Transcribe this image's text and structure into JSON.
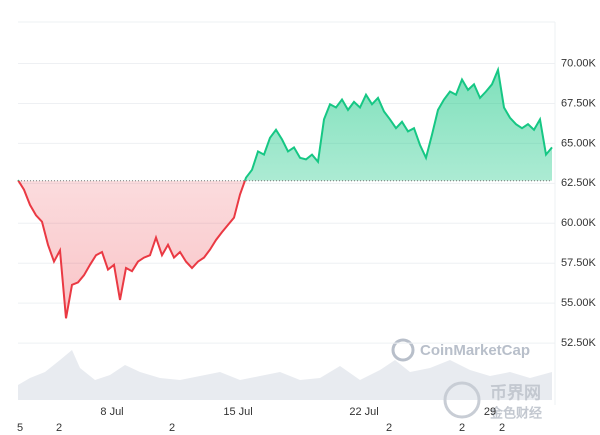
{
  "chart_data": {
    "type": "line",
    "values": [
      62700,
      62100,
      61150,
      60500,
      60100,
      58650,
      57600,
      58300,
      54050,
      56150,
      56300,
      56750,
      57400,
      58000,
      58200,
      57100,
      57400,
      55200,
      57200,
      57000,
      57600,
      57850,
      58000,
      59100,
      58000,
      58650,
      57850,
      58200,
      57600,
      57200,
      57600,
      57850,
      58350,
      58950,
      59450,
      59900,
      60350,
      61800,
      62850,
      63350,
      64500,
      64300,
      65350,
      65850,
      65250,
      64500,
      64750,
      64100,
      64000,
      64300,
      63850,
      66500,
      67450,
      67250,
      67750,
      67100,
      67600,
      67250,
      68050,
      67450,
      67850,
      67000,
      66500,
      65950,
      66350,
      65750,
      65950,
      64900,
      64100,
      65550,
      67100,
      67750,
      68250,
      68050,
      69000,
      68350,
      68700,
      67850,
      68250,
      68700,
      69600,
      67250,
      66600,
      66200,
      65950,
      66200,
      65850,
      66500,
      64300,
      64750
    ],
    "baseline": 62660,
    "color_up": "#16c784",
    "color_down": "#ea3943",
    "xlim": [
      0,
      89
    ],
    "xticks": [
      {
        "value": 15.67,
        "label": "8 Jul"
      },
      {
        "value": 36.67,
        "label": "15 Jul"
      },
      {
        "value": 57.67,
        "label": "22 Jul"
      },
      {
        "value": 78.67,
        "label": "29"
      }
    ],
    "ylim": [
      50000,
      72600
    ],
    "yticks": [
      {
        "value": 70000,
        "label": "70.00K"
      },
      {
        "value": 67500,
        "label": "67.50K"
      },
      {
        "value": 65000,
        "label": "65.00K"
      },
      {
        "value": 62500,
        "label": "62.50K"
      },
      {
        "value": 60000,
        "label": "60.00K"
      },
      {
        "value": 57500,
        "label": "57.50K"
      },
      {
        "value": 55000,
        "label": "55.00K"
      },
      {
        "value": 52500,
        "label": "52.50K"
      }
    ],
    "grid": true,
    "bottom_labels": [
      "5",
      "2",
      "2",
      "2",
      "2",
      "2"
    ],
    "watermark": "CoinMarketCap",
    "watermark_cn": [
      "币界网",
      "金色财经"
    ]
  }
}
